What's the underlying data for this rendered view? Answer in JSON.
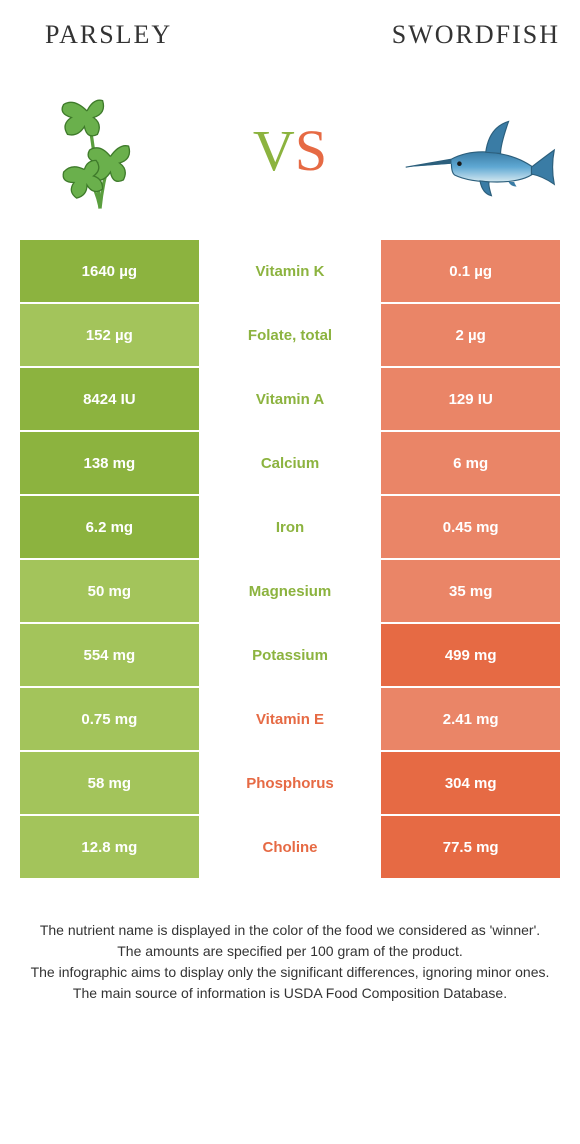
{
  "colors": {
    "green_solid": "#8cb33f",
    "green_light": "#a3c45b",
    "orange_solid": "#e66a44",
    "orange_light": "#ea8567",
    "white": "#ffffff",
    "text_white": "#ffffff",
    "text_green": "#8cb33f",
    "text_orange": "#e66a44"
  },
  "header": {
    "left_title": "Parsley",
    "right_title": "Swordfish",
    "vs_v": "V",
    "vs_s": "S"
  },
  "rows": [
    {
      "left": "1640 µg",
      "label": "Vitamin K",
      "right": "0.1 µg",
      "winner": "left",
      "left_shade": "solid",
      "right_shade": "light"
    },
    {
      "left": "152 µg",
      "label": "Folate, total",
      "right": "2 µg",
      "winner": "left",
      "left_shade": "light",
      "right_shade": "light"
    },
    {
      "left": "8424 IU",
      "label": "Vitamin A",
      "right": "129 IU",
      "winner": "left",
      "left_shade": "solid",
      "right_shade": "light"
    },
    {
      "left": "138 mg",
      "label": "Calcium",
      "right": "6 mg",
      "winner": "left",
      "left_shade": "solid",
      "right_shade": "light"
    },
    {
      "left": "6.2 mg",
      "label": "Iron",
      "right": "0.45 mg",
      "winner": "left",
      "left_shade": "solid",
      "right_shade": "light"
    },
    {
      "left": "50 mg",
      "label": "Magnesium",
      "right": "35 mg",
      "winner": "left",
      "left_shade": "light",
      "right_shade": "light"
    },
    {
      "left": "554 mg",
      "label": "Potassium",
      "right": "499 mg",
      "winner": "left",
      "left_shade": "light",
      "right_shade": "solid"
    },
    {
      "left": "0.75 mg",
      "label": "Vitamin E",
      "right": "2.41 mg",
      "winner": "right",
      "left_shade": "light",
      "right_shade": "light"
    },
    {
      "left": "58 mg",
      "label": "Phosphorus",
      "right": "304 mg",
      "winner": "right",
      "left_shade": "light",
      "right_shade": "solid"
    },
    {
      "left": "12.8 mg",
      "label": "Choline",
      "right": "77.5 mg",
      "winner": "right",
      "left_shade": "light",
      "right_shade": "solid"
    }
  ],
  "footnote": {
    "line1": "The nutrient name is displayed in the color of the food we considered as 'winner'.",
    "line2": "The amounts are specified per 100 gram of the product.",
    "line3": "The infographic aims to display only the significant differences, ignoring minor ones.",
    "line4": "The main source of information is USDA Food Composition Database."
  }
}
